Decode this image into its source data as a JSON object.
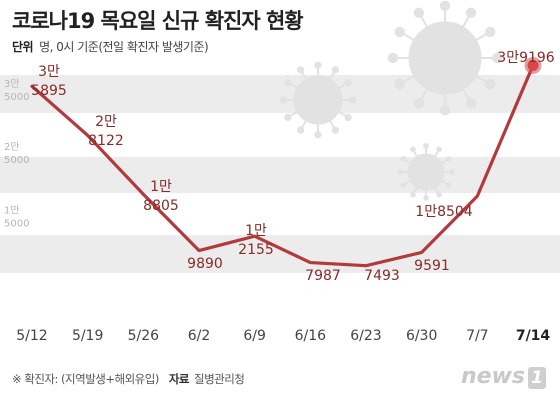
{
  "title": "코로나19 목요일 신규 확진자 현황",
  "unit": {
    "key": "단위",
    "text": "명, 0시 기준(전일 확진자 발생기준)"
  },
  "footer": {
    "note": "※ 확진자: (지역발생+해외유입)",
    "source_key": "자료",
    "source": "질병관리청"
  },
  "logo": {
    "text": "news",
    "mark": "1"
  },
  "colors": {
    "line": "#b3393c",
    "last_marker": "#d4484b",
    "band": "#ececec"
  },
  "chart_data": {
    "type": "line",
    "title": "코로나19 목요일 신규 확진자 현황",
    "categories": [
      "5/12",
      "5/19",
      "5/26",
      "6/2",
      "6/9",
      "6/16",
      "6/23",
      "6/30",
      "7/7",
      "7/14"
    ],
    "series": [
      {
        "values": [
          35895,
          28122,
          18805,
          9890,
          12155,
          7987,
          7493,
          9591,
          18504,
          39196
        ]
      }
    ],
    "data_labels": [
      [
        "3만",
        "5895"
      ],
      [
        "2만",
        "8122"
      ],
      [
        "1만",
        "8805"
      ],
      [
        "9890"
      ],
      [
        "1만",
        "2155"
      ],
      [
        "7987"
      ],
      [
        "7493"
      ],
      [
        "9591"
      ],
      [
        "1만8504"
      ],
      [
        "3만9196"
      ]
    ],
    "y_ticks": [
      {
        "value": 35000,
        "label": [
          "3만",
          "5000"
        ]
      },
      {
        "value": 25000,
        "label": [
          "2만",
          "5000"
        ]
      },
      {
        "value": 15000,
        "label": [
          "1만",
          "5000"
        ]
      }
    ],
    "ylim": [
      0,
      45000
    ],
    "grid": "alternating horizontal bands",
    "highlight": "last point"
  }
}
